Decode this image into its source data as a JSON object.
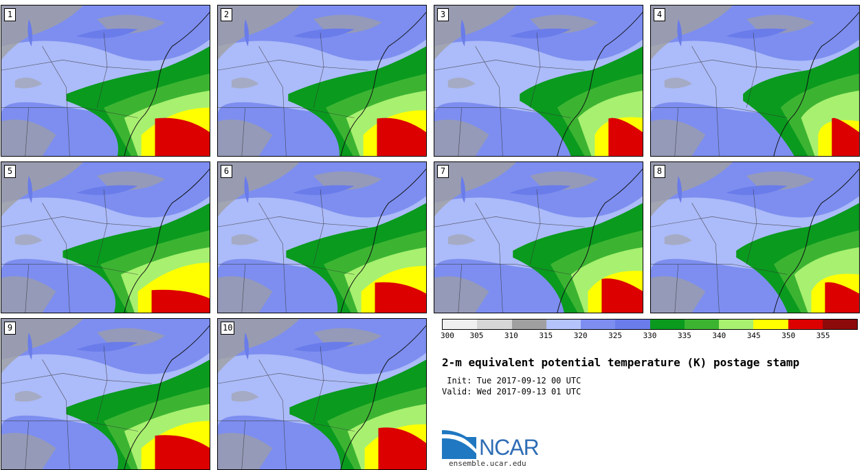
{
  "panels": [
    {
      "label": "1"
    },
    {
      "label": "2"
    },
    {
      "label": "3"
    },
    {
      "label": "4"
    },
    {
      "label": "5"
    },
    {
      "label": "6"
    },
    {
      "label": "7"
    },
    {
      "label": "8"
    },
    {
      "label": "9"
    },
    {
      "label": "10"
    }
  ],
  "colorbar": {
    "levels": [
      "300",
      "305",
      "310",
      "315",
      "320",
      "325",
      "330",
      "335",
      "340",
      "345",
      "350",
      "355"
    ],
    "colors": [
      "#f0f0f0",
      "#d6d6d6",
      "#a0a0a0",
      "#b4c3fa",
      "#7d8ef0",
      "#6a7cea",
      "#0a9a1e",
      "#3cb432",
      "#a8f070",
      "#ffff00",
      "#dc0000",
      "#8c0a0a"
    ]
  },
  "title": "2-m equivalent potential temperature (K) postage stamp",
  "init": " Init: Tue 2017-09-12 00 UTC",
  "valid": "Valid: Wed 2017-09-13 01 UTC",
  "logo": {
    "text": "NCAR",
    "url": "ensemble.ucar.edu"
  }
}
